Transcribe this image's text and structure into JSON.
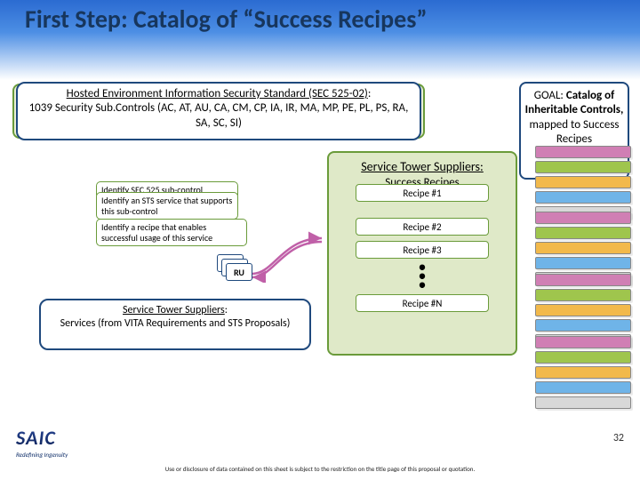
{
  "title": "First Step: Catalog of “Success Recipes”",
  "hosted": {
    "line1_u": "Hosted Environment Information Security Standard (SEC 525-02)",
    "line1_tail": ":",
    "line2": "1039 Security Sub.Controls (AC, AT, AU, CA, CM, CP, IA, IR, MA, MP, PE, PL, PS, RA, SA, SC, SI)"
  },
  "goal": {
    "lead": "GOAL: ",
    "bold": "Catalog of Inheritable Controls,",
    "rest": " mapped to Success Recipes"
  },
  "ident": {
    "c1": "Identify SEC 525 sub-control",
    "c2": "Identify an STS service that supports this sub-control",
    "c3": "Identify a recipe that enables successful usage of this service",
    "ru": "RU"
  },
  "recipes": {
    "title": "Service Tower Suppliers",
    "sub": "Success Recipes",
    "r1": "Recipe #1",
    "r2": "Recipe #2",
    "r3": "Recipe #3",
    "rn": "Recipe #N",
    "dots": "•\n•\n•"
  },
  "services": {
    "title_u": "Service Tower Suppliers",
    "title_tail": ":",
    "body": "Services (from VITA Requirements and STS Proposals)"
  },
  "stack_colors": [
    "#d07fb4",
    "#9fc54d",
    "#f2b94b",
    "#6fb4e8",
    "#d8d8d8"
  ],
  "logo": "SAIC",
  "logo_sub": "Redefining Ingenuity",
  "page": "32",
  "disclaimer": "Use or disclosure of data contained on this sheet is subject to the restriction on the title page of this proposal or quotation."
}
